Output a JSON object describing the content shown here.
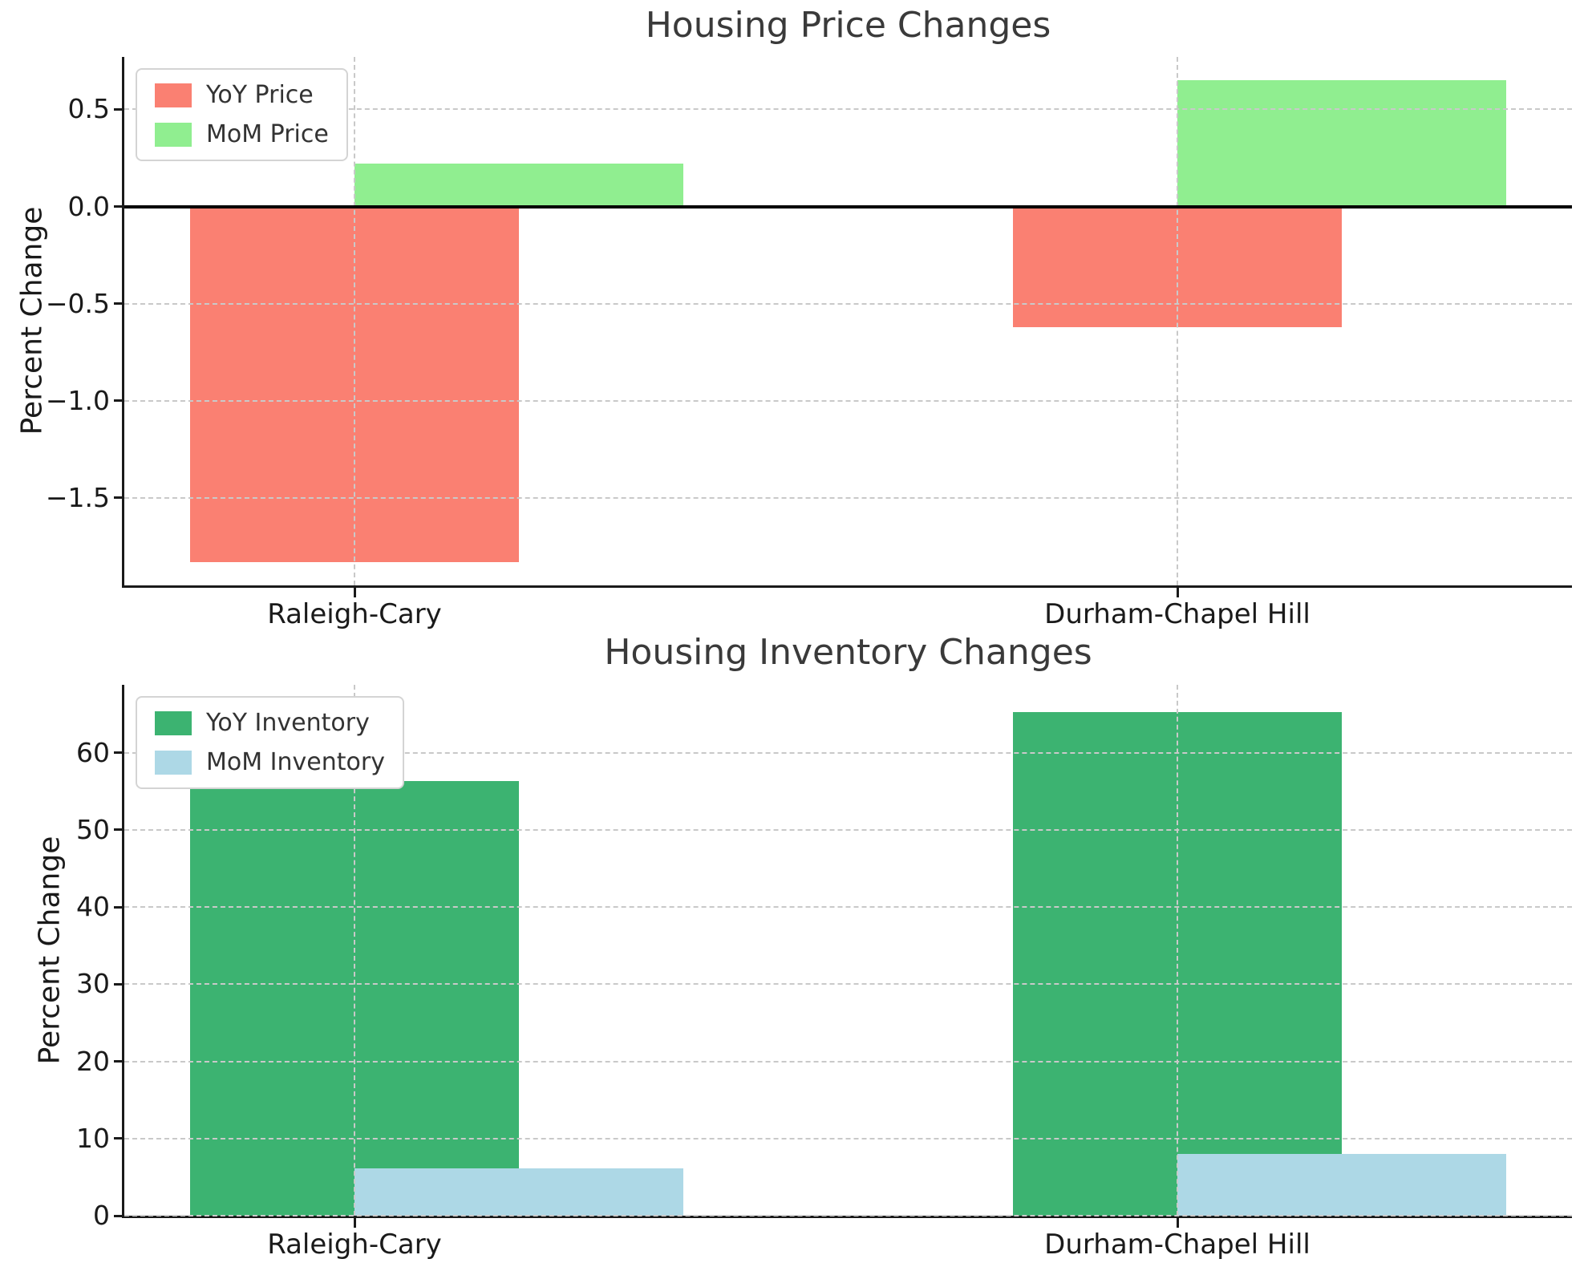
{
  "figure": {
    "background": "#ffffff",
    "style": {
      "grid_color": "#c9c9c9",
      "grid_style": "dashed",
      "spine_color": "#1a1a1a",
      "title_color": "#3a3a3a",
      "tick_label_color": "#1a1a1a",
      "zero_line_color": "#000000",
      "legend_border_color": "#d4d4d4"
    }
  },
  "chart_data": [
    {
      "type": "bar",
      "title": "Housing Price Changes",
      "ylabel": "Percent Change",
      "xlabel": "",
      "categories": [
        "Raleigh-Cary",
        "Durham-Chapel Hill"
      ],
      "series": [
        {
          "name": "YoY Price",
          "color": "#FA8072",
          "values": [
            -1.83,
            -0.62
          ]
        },
        {
          "name": "MoM Price",
          "color": "#90EE90",
          "values": [
            0.22,
            0.65
          ]
        }
      ],
      "ylim": [
        -1.95,
        0.77
      ],
      "yticks": [
        0.5,
        0.0,
        -0.5,
        -1.0,
        -1.5
      ],
      "ytick_labels": [
        "0.5",
        "0.0",
        "−0.5",
        "−1.0",
        "−1.5"
      ],
      "grid": true,
      "legend_position": "upper-left",
      "zero_line": true
    },
    {
      "type": "bar",
      "title": "Housing Inventory Changes",
      "ylabel": "Percent Change",
      "xlabel": "",
      "categories": [
        "Raleigh-Cary",
        "Durham-Chapel Hill"
      ],
      "series": [
        {
          "name": "YoY Inventory",
          "color": "#3CB371",
          "values": [
            56.3,
            65.3
          ]
        },
        {
          "name": "MoM Inventory",
          "color": "#ADD8E6",
          "values": [
            6.1,
            8.0
          ]
        }
      ],
      "ylim": [
        0,
        68.8
      ],
      "yticks": [
        0,
        10,
        20,
        30,
        40,
        50,
        60
      ],
      "ytick_labels": [
        "0",
        "10",
        "20",
        "30",
        "40",
        "50",
        "60"
      ],
      "grid": true,
      "legend_position": "upper-left",
      "zero_line": false
    }
  ]
}
